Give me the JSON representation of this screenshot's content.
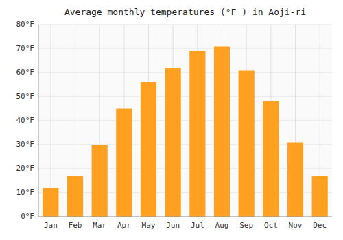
{
  "chart_data": {
    "type": "bar",
    "title": "Average monthly temperatures (°F ) in Aoji-ri",
    "categories": [
      "Jan",
      "Feb",
      "Mar",
      "Apr",
      "May",
      "Jun",
      "Jul",
      "Aug",
      "Sep",
      "Oct",
      "Nov",
      "Dec"
    ],
    "values": [
      12,
      17,
      30,
      45,
      56,
      62,
      69,
      71,
      61,
      48,
      31,
      17
    ],
    "color": "#FFA020",
    "ylim": [
      0,
      80
    ],
    "yticks": [
      {
        "value": 0,
        "label": "0°F"
      },
      {
        "value": 10,
        "label": "10°F"
      },
      {
        "value": 20,
        "label": "20°F"
      },
      {
        "value": 30,
        "label": "30°F"
      },
      {
        "value": 40,
        "label": "40°F"
      },
      {
        "value": 50,
        "label": "50°F"
      },
      {
        "value": 60,
        "label": "60°F"
      },
      {
        "value": 70,
        "label": "70°F"
      },
      {
        "value": 80,
        "label": "80°F"
      }
    ],
    "grid": true
  }
}
